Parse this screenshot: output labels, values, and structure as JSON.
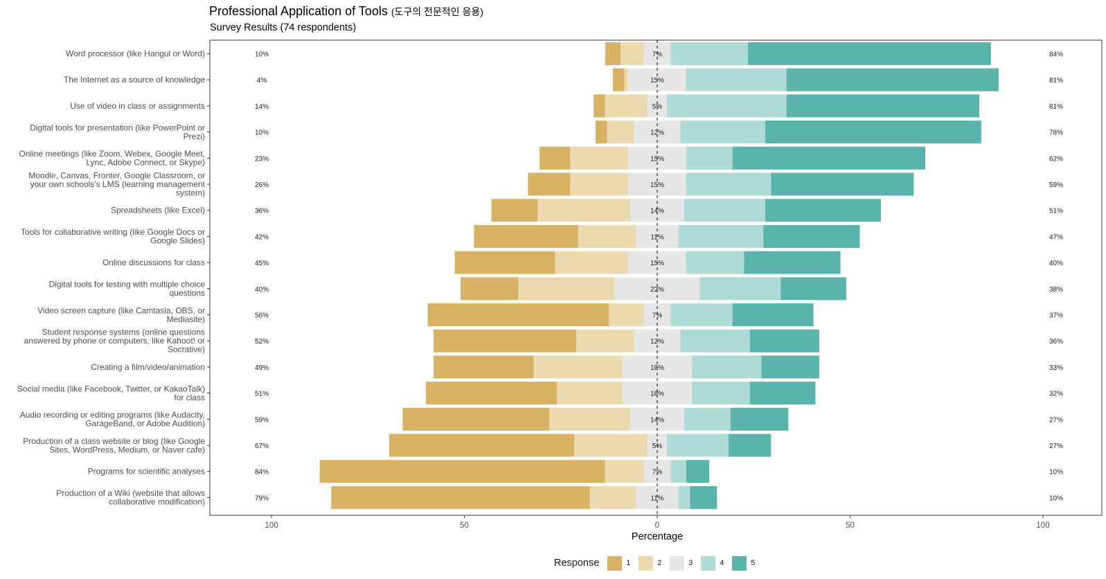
{
  "title": "Professional Application of Tools",
  "title_korean": "(도구의 전문적인 응용)",
  "subtitle": "Survey Results (74 respondents)",
  "chart_data": {
    "type": "bar",
    "orientation": "horizontal-diverging-stacked",
    "xlabel": "Percentage",
    "xlim": [
      -100,
      100
    ],
    "xticks": [
      -100,
      -50,
      0,
      50,
      100
    ],
    "xtick_labels": [
      "100",
      "50",
      "0",
      "50",
      "100"
    ],
    "grid": false,
    "legend_position": "bottom",
    "legend_title": "Response",
    "responses": [
      "1",
      "2",
      "3",
      "4",
      "5"
    ],
    "colors": {
      "1": "#d9b365",
      "2": "#ebdab0",
      "3": "#e6e6e6",
      "4": "#afdbd6",
      "5": "#5ab4ac"
    },
    "categories": [
      {
        "label": "Word processor (like Hangul or Word)",
        "values": [
          4,
          6,
          7,
          20,
          63
        ],
        "low_label": "10%",
        "neutral_label": "7%",
        "high_label": "84%"
      },
      {
        "label": "The Internet as a source of knowledge",
        "values": [
          3,
          1,
          15,
          26,
          55
        ],
        "low_label": "4%",
        "neutral_label": "15%",
        "high_label": "81%"
      },
      {
        "label": "Use of video in class or assignments",
        "values": [
          3,
          11,
          5,
          31,
          50
        ],
        "low_label": "14%",
        "neutral_label": "5%",
        "high_label": "81%"
      },
      {
        "label": "Digital tools for presentation (like PowerPoint or Prezi)",
        "values": [
          3,
          7,
          12,
          22,
          56
        ],
        "low_label": "10%",
        "neutral_label": "12%",
        "high_label": "78%"
      },
      {
        "label": "Online meetings (like Zoom, Webex, Google Meet, Lync, Adobe Connect, or Skype)",
        "values": [
          8,
          15,
          15,
          12,
          50
        ],
        "low_label": "23%",
        "neutral_label": "15%",
        "high_label": "62%"
      },
      {
        "label": "Moodle, Canvas, Fronter, Google Classroom, or your own schools's LMS (learning management system)",
        "values": [
          11,
          15,
          15,
          22,
          37
        ],
        "low_label": "26%",
        "neutral_label": "15%",
        "high_label": "59%"
      },
      {
        "label": "Spreadsheets (like Excel)",
        "values": [
          12,
          24,
          14,
          21,
          30
        ],
        "low_label": "36%",
        "neutral_label": "14%",
        "high_label": "51%"
      },
      {
        "label": "Tools for collaborative writing (like Google Docs or Google Slides)",
        "values": [
          27,
          15,
          11,
          22,
          25
        ],
        "low_label": "42%",
        "neutral_label": "11%",
        "high_label": "47%"
      },
      {
        "label": "Online discussions for class",
        "values": [
          26,
          19,
          15,
          15,
          25
        ],
        "low_label": "45%",
        "neutral_label": "15%",
        "high_label": "40%"
      },
      {
        "label": "Digital tools for testing with multiple choice questions",
        "values": [
          15,
          25,
          22,
          21,
          17
        ],
        "low_label": "40%",
        "neutral_label": "22%",
        "high_label": "38%"
      },
      {
        "label": "Video screen capture (like Camtasia, OBS, or Mediasite)",
        "values": [
          47,
          9,
          7,
          16,
          21
        ],
        "low_label": "56%",
        "neutral_label": "7%",
        "high_label": "37%"
      },
      {
        "label": "Student response systems (online questions answered by phone or computers, like Kahoot! or Socrative)",
        "values": [
          37,
          15,
          12,
          18,
          18
        ],
        "low_label": "52%",
        "neutral_label": "12%",
        "high_label": "36%"
      },
      {
        "label": "Creating a film/video/animation",
        "values": [
          26,
          23,
          18,
          18,
          15
        ],
        "low_label": "49%",
        "neutral_label": "18%",
        "high_label": "33%"
      },
      {
        "label": "Social media (like Facebook, Twitter, or KakaoTalk) for class",
        "values": [
          34,
          17,
          18,
          15,
          17
        ],
        "low_label": "51%",
        "neutral_label": "18%",
        "high_label": "32%"
      },
      {
        "label": "Audio recording or editing programs (like Audacity, GarageBand, or Adobe Audition)",
        "values": [
          38,
          21,
          14,
          12,
          15
        ],
        "low_label": "59%",
        "neutral_label": "14%",
        "high_label": "27%"
      },
      {
        "label": "Production of a class website or blog (like Google Sites, WordPress, Medium, or Naver cafe)",
        "values": [
          48,
          19,
          5,
          16,
          11
        ],
        "low_label": "67%",
        "neutral_label": "5%",
        "high_label": "27%"
      },
      {
        "label": "Programs for scientific analyses",
        "values": [
          74,
          10,
          7,
          4,
          6
        ],
        "low_label": "84%",
        "neutral_label": "7%",
        "high_label": "10%"
      },
      {
        "label": "Production of a Wiki (website that allows collaborative modification)",
        "values": [
          67,
          12,
          11,
          3,
          7
        ],
        "low_label": "79%",
        "neutral_label": "11%",
        "high_label": "10%"
      }
    ]
  }
}
